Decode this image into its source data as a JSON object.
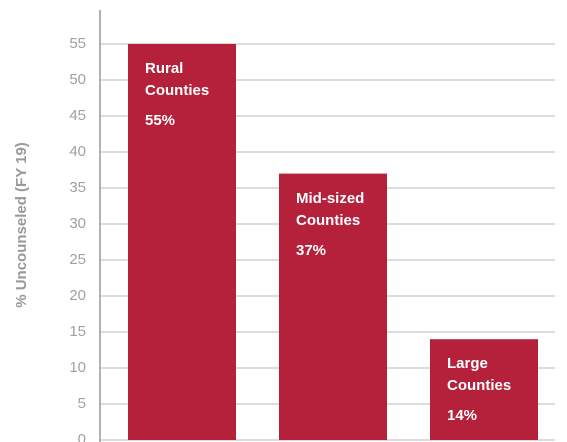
{
  "chart_data": {
    "type": "bar",
    "y_axis_label": "% Uncounseled (FY 19)",
    "categories": [
      "Rural Counties",
      "Mid-sized Counties",
      "Large Counties"
    ],
    "values": [
      55,
      37,
      14
    ],
    "value_labels": [
      "55%",
      "37%",
      "14%"
    ],
    "color": "#b5213b",
    "ylim": [
      0,
      60
    ],
    "yticks": [
      0,
      5,
      10,
      15,
      20,
      25,
      30,
      35,
      40,
      45,
      50,
      55
    ],
    "grid": true
  }
}
